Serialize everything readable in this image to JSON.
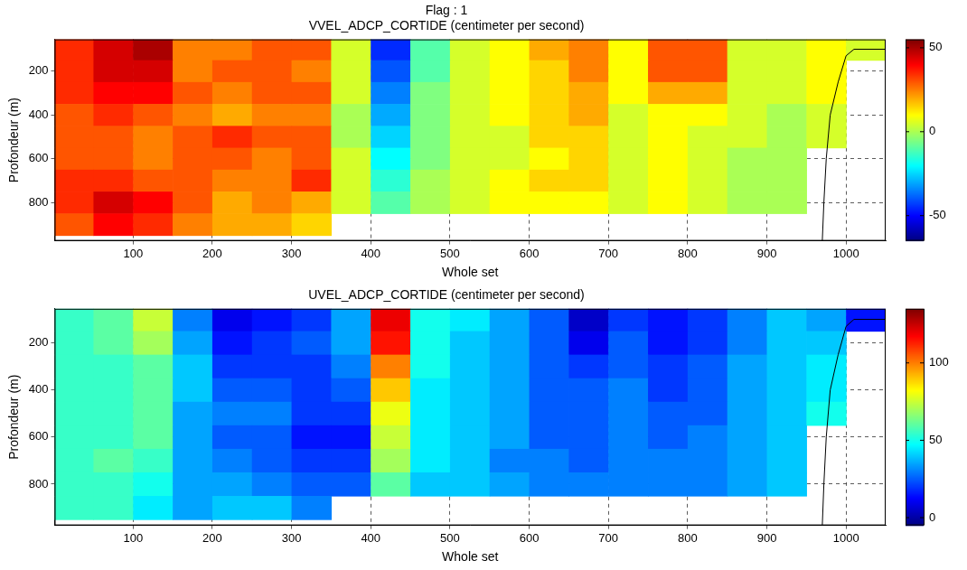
{
  "chart_data": [
    {
      "type": "heatmap",
      "subtitle": "Flag : 1",
      "title": "VVEL_ADCP_CORTIDE (centimeter per second)",
      "x_label": "Whole set",
      "y_label": "Profondeur (m)",
      "xlim": [
        1,
        1050
      ],
      "xticks": [
        100,
        200,
        300,
        400,
        500,
        600,
        700,
        800,
        900,
        1000
      ],
      "ylim": [
        975,
        55
      ],
      "yticks": [
        200,
        400,
        600,
        800
      ],
      "grid": true,
      "x": [
        25,
        75,
        125,
        175,
        225,
        275,
        325,
        375,
        425,
        475,
        525,
        575,
        625,
        675,
        725,
        775,
        825,
        875,
        925,
        975,
        1025
      ],
      "y": [
        100,
        200,
        300,
        400,
        500,
        600,
        700,
        800,
        900
      ],
      "cells": [
        [
          35,
          45,
          50,
          25,
          25,
          30,
          30,
          5,
          -45,
          -10,
          5,
          10,
          20,
          25,
          10,
          30,
          30,
          5,
          5,
          10,
          5
        ],
        [
          35,
          45,
          45,
          25,
          30,
          30,
          25,
          5,
          -40,
          -10,
          5,
          10,
          15,
          25,
          10,
          30,
          30,
          5,
          5,
          10,
          null
        ],
        [
          35,
          40,
          40,
          30,
          25,
          30,
          30,
          5,
          -35,
          -5,
          5,
          10,
          15,
          20,
          10,
          20,
          20,
          5,
          5,
          10,
          null
        ],
        [
          30,
          35,
          30,
          25,
          20,
          25,
          25,
          0,
          -30,
          -5,
          5,
          10,
          15,
          20,
          5,
          10,
          10,
          5,
          0,
          5,
          null
        ],
        [
          30,
          30,
          25,
          30,
          35,
          30,
          30,
          0,
          -25,
          -5,
          5,
          5,
          15,
          15,
          5,
          10,
          5,
          5,
          0,
          5,
          null
        ],
        [
          30,
          30,
          25,
          30,
          30,
          25,
          30,
          5,
          -20,
          -5,
          5,
          5,
          10,
          15,
          5,
          10,
          5,
          0,
          0,
          null,
          null
        ],
        [
          35,
          35,
          30,
          30,
          25,
          25,
          35,
          5,
          -15,
          0,
          5,
          10,
          15,
          15,
          5,
          10,
          5,
          0,
          0,
          null,
          null
        ],
        [
          35,
          45,
          40,
          30,
          20,
          25,
          20,
          5,
          -10,
          0,
          5,
          10,
          10,
          10,
          5,
          10,
          5,
          0,
          0,
          null,
          null
        ],
        [
          30,
          40,
          35,
          25,
          20,
          20,
          15,
          null,
          null,
          null,
          null,
          null,
          null,
          null,
          null,
          null,
          null,
          null,
          null,
          null,
          null
        ]
      ],
      "color_range": [
        -65,
        55
      ],
      "color_ticks": [
        -50,
        0,
        50
      ],
      "outline": {
        "x": [
          970,
          972,
          975,
          980,
          990,
          1000,
          1010,
          1050
        ],
        "y": [
          975,
          800,
          600,
          400,
          250,
          130,
          100,
          100
        ],
        "color": "#000000"
      }
    },
    {
      "type": "heatmap",
      "title": "UVEL_ADCP_CORTIDE (centimeter per second)",
      "x_label": "Whole set",
      "y_label": "Profondeur (m)",
      "xlim": [
        1,
        1050
      ],
      "xticks": [
        100,
        200,
        300,
        400,
        500,
        600,
        700,
        800,
        900,
        1000
      ],
      "ylim": [
        975,
        55
      ],
      "yticks": [
        200,
        400,
        600,
        800
      ],
      "grid": true,
      "x": [
        25,
        75,
        125,
        175,
        225,
        275,
        325,
        375,
        425,
        475,
        525,
        575,
        625,
        675,
        725,
        775,
        825,
        875,
        925,
        975,
        1025
      ],
      "y": [
        100,
        200,
        300,
        400,
        500,
        600,
        700,
        800,
        900
      ],
      "cells": [
        [
          55,
          60,
          75,
          30,
          10,
          15,
          20,
          35,
          120,
          50,
          45,
          35,
          25,
          5,
          20,
          15,
          20,
          30,
          40,
          35,
          15
        ],
        [
          55,
          60,
          70,
          35,
          15,
          20,
          25,
          35,
          115,
          50,
          40,
          35,
          25,
          10,
          25,
          15,
          20,
          30,
          40,
          40,
          null
        ],
        [
          55,
          55,
          60,
          40,
          20,
          20,
          20,
          30,
          100,
          50,
          40,
          35,
          25,
          20,
          25,
          20,
          25,
          35,
          40,
          45,
          null
        ],
        [
          55,
          55,
          60,
          40,
          25,
          25,
          20,
          25,
          90,
          45,
          40,
          35,
          25,
          25,
          30,
          20,
          25,
          35,
          40,
          45,
          null
        ],
        [
          55,
          55,
          60,
          35,
          30,
          30,
          20,
          20,
          80,
          45,
          40,
          35,
          25,
          25,
          30,
          25,
          25,
          35,
          40,
          50,
          null
        ],
        [
          55,
          55,
          60,
          35,
          25,
          25,
          15,
          15,
          75,
          45,
          40,
          35,
          25,
          25,
          30,
          25,
          30,
          35,
          40,
          null,
          null
        ],
        [
          55,
          60,
          55,
          35,
          30,
          25,
          20,
          20,
          70,
          45,
          40,
          30,
          30,
          25,
          30,
          30,
          30,
          35,
          40,
          null,
          null
        ],
        [
          55,
          55,
          50,
          35,
          35,
          30,
          25,
          25,
          60,
          40,
          40,
          35,
          30,
          30,
          30,
          30,
          30,
          35,
          40,
          null,
          null
        ],
        [
          55,
          55,
          45,
          35,
          40,
          40,
          30,
          null,
          null,
          null,
          null,
          null,
          null,
          null,
          null,
          null,
          null,
          null,
          null,
          null,
          null
        ]
      ],
      "color_range": [
        -5,
        135
      ],
      "color_ticks": [
        0,
        50,
        100
      ],
      "outline": {
        "x": [
          970,
          972,
          975,
          980,
          990,
          1000,
          1010,
          1050
        ],
        "y": [
          975,
          800,
          600,
          400,
          250,
          130,
          100,
          100
        ],
        "color": "#000000"
      }
    }
  ]
}
